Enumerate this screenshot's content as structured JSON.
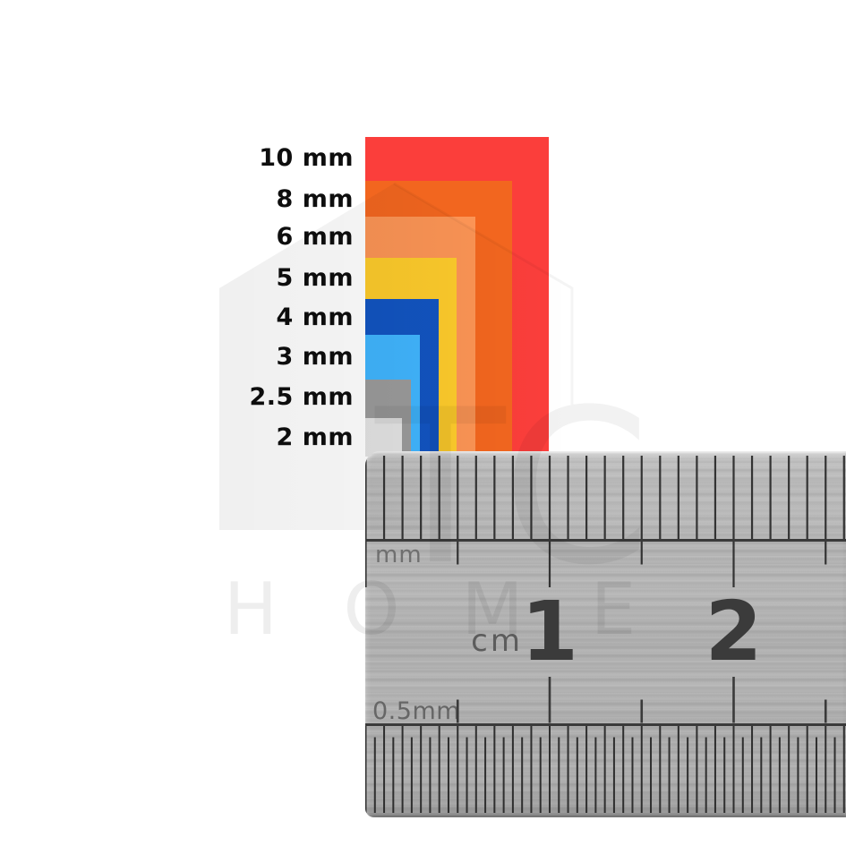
{
  "figure": {
    "background": "#ffffff",
    "description_unit": "mm"
  },
  "size_chart": {
    "unit": "mm",
    "items": [
      {
        "label": "10 mm",
        "mm": 10,
        "color": "#FB3E3B"
      },
      {
        "label": "8 mm",
        "mm": 8,
        "color": "#F2661F"
      },
      {
        "label": "6 mm",
        "mm": 6,
        "color": "#FB9455"
      },
      {
        "label": "5 mm",
        "mm": 5,
        "color": "#FCCA2B"
      },
      {
        "label": "4 mm",
        "mm": 4,
        "color": "#1254C0"
      },
      {
        "label": "3 mm",
        "mm": 3,
        "color": "#40B4FD"
      },
      {
        "label": "2.5 mm",
        "mm": 2.5,
        "color": "#9A9A9A"
      },
      {
        "label": "2 mm",
        "mm": 2,
        "color": "#E2E2E2"
      }
    ]
  },
  "ruler": {
    "top_scale_label": "mm",
    "cm_label": "cm",
    "bottom_scale_label": "0.5mm",
    "cm_numbers": [
      {
        "value": "1",
        "cm": 1
      },
      {
        "value": "2",
        "cm": 2
      }
    ],
    "visible_mm_range": [
      0,
      26
    ],
    "tick_color": "#333333",
    "number_color": "#3b3b3b"
  },
  "watermark": {
    "monogram": "TC",
    "word": "HOME"
  }
}
